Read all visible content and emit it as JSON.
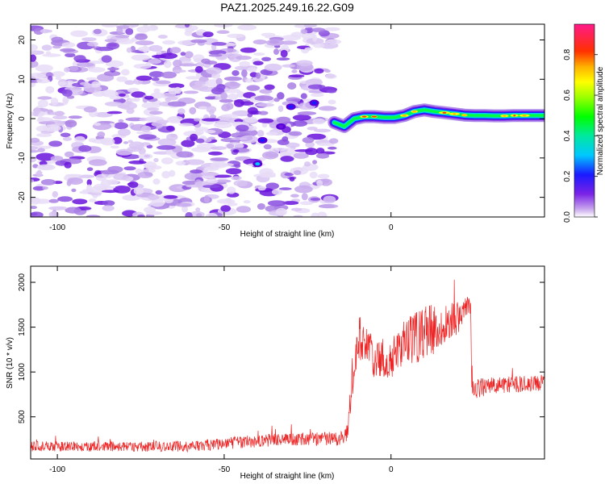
{
  "figure": {
    "title": "PAZ1.2025.249.16.22.G09"
  },
  "chart_data": [
    {
      "type": "heatmap",
      "xlabel": "Height of straight line (km)",
      "ylabel": "Frequency (Hz)",
      "xlim": [
        -108,
        46
      ],
      "ylim": [
        -25,
        24
      ],
      "xticks": [
        -100,
        -50,
        0
      ],
      "yticks": [
        -20,
        -10,
        0,
        10,
        20
      ],
      "grid": false,
      "signal_track": {
        "x": [
          -17,
          -14,
          -11,
          -8,
          -5,
          -2,
          1,
          4,
          7,
          10,
          13,
          16,
          19,
          22,
          25,
          28,
          31,
          34,
          37,
          40,
          43,
          46
        ],
        "y": [
          -1,
          -2,
          0,
          0.5,
          0.5,
          0.3,
          0.3,
          0.8,
          1.8,
          2.2,
          1.8,
          1.5,
          1.2,
          0.9,
          0.8,
          0.8,
          0.7,
          0.7,
          0.8,
          0.8,
          0.8,
          0.8
        ]
      },
      "colorbar": {
        "label": "Normalized spectral amplitude",
        "range": [
          0,
          0.95
        ],
        "ticks": [
          "0.0",
          "0.2",
          "0.4",
          "0.6",
          "0.8"
        ]
      }
    },
    {
      "type": "line",
      "xlabel": "Height of straight line (km)",
      "ylabel": "SNR (10 * v/v)",
      "xlim": [
        -108,
        46
      ],
      "ylim": [
        30,
        2180
      ],
      "xticks": [
        -100,
        -50,
        0
      ],
      "yticks": [
        500,
        1000,
        1500,
        2000
      ],
      "grid": false,
      "color": "#ee2222",
      "envelope": [
        {
          "x": -108,
          "y": 170,
          "spread": 55
        },
        {
          "x": -60,
          "y": 170,
          "spread": 60
        },
        {
          "x": -45,
          "y": 220,
          "spread": 70
        },
        {
          "x": -30,
          "y": 250,
          "spread": 70
        },
        {
          "x": -15,
          "y": 260,
          "spread": 80
        },
        {
          "x": -13,
          "y": 330,
          "spread": 110
        },
        {
          "x": -12,
          "y": 800,
          "spread": 250
        },
        {
          "x": -10,
          "y": 1400,
          "spread": 250
        },
        {
          "x": -7,
          "y": 1300,
          "spread": 250
        },
        {
          "x": -5,
          "y": 1150,
          "spread": 220
        },
        {
          "x": 0,
          "y": 1150,
          "spread": 230
        },
        {
          "x": 5,
          "y": 1350,
          "spread": 280
        },
        {
          "x": 10,
          "y": 1450,
          "spread": 320
        },
        {
          "x": 15,
          "y": 1500,
          "spread": 250
        },
        {
          "x": 20,
          "y": 1600,
          "spread": 180
        },
        {
          "x": 23.9,
          "y": 1750,
          "spread": 120
        },
        {
          "x": 24.2,
          "y": 800,
          "spread": 120
        },
        {
          "x": 30,
          "y": 850,
          "spread": 90
        },
        {
          "x": 46,
          "y": 880,
          "spread": 90
        }
      ]
    }
  ]
}
